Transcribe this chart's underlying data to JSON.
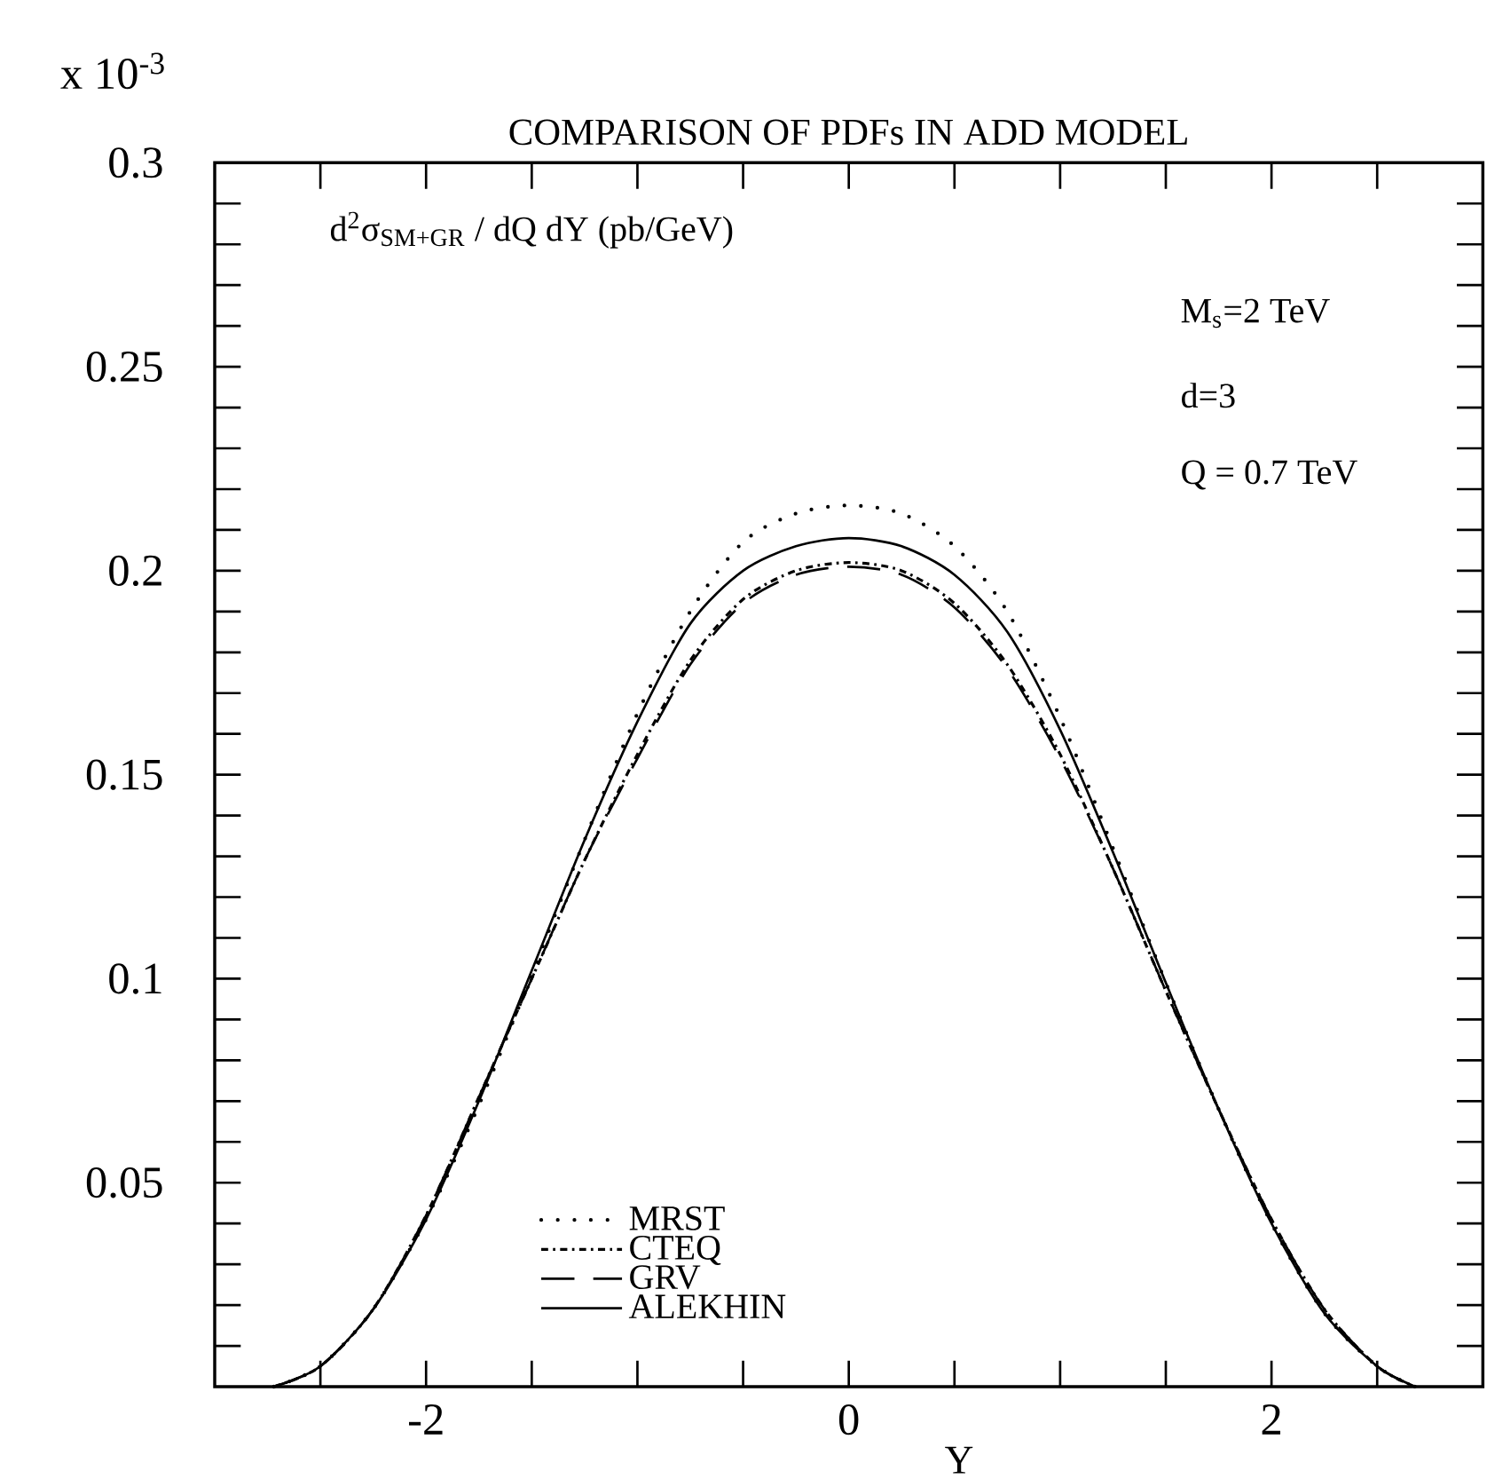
{
  "chart_data": {
    "type": "line",
    "title": "COMPARISON OF PDFs IN ADD MODEL",
    "xlabel": "Y",
    "annotations": [
      "x 10$^{-3}$",
      "d$^{2}$σ$_{SM+GR}$ / dQ dY (pb/GeV)",
      "M$_{s}$=2 TeV",
      "d=3",
      "Q = 0.7 TeV"
    ],
    "x": [
      -2.72,
      -2.5,
      -2.25,
      -2,
      -1.75,
      -1.5,
      -1.25,
      -1,
      -0.75,
      -0.5,
      -0.25,
      0,
      0.25,
      0.5,
      0.75,
      1,
      1.25,
      1.5,
      1.75,
      2,
      2.25,
      2.5,
      2.68
    ],
    "series": [
      {
        "name": "MRST",
        "color": "#000000",
        "line_style": "dotted",
        "values": [
          0,
          0.005,
          0.019,
          0.041,
          0.069,
          0.101,
          0.134,
          0.165,
          0.19,
          0.207,
          0.214,
          0.216,
          0.214,
          0.206,
          0.19,
          0.164,
          0.132,
          0.099,
          0.068,
          0.04,
          0.018,
          0.005,
          0
        ]
      },
      {
        "name": "CTEQ",
        "color": "#000000",
        "line_style": "dashdot",
        "values": [
          0,
          0.005,
          0.019,
          0.042,
          0.071,
          0.1,
          0.129,
          0.155,
          0.178,
          0.193,
          0.2,
          0.202,
          0.2,
          0.192,
          0.177,
          0.155,
          0.127,
          0.097,
          0.068,
          0.041,
          0.019,
          0.005,
          0
        ]
      },
      {
        "name": "GRV",
        "color": "#000000",
        "line_style": "dashed",
        "values": [
          0,
          0.005,
          0.019,
          0.042,
          0.071,
          0.1,
          0.129,
          0.154,
          0.177,
          0.192,
          0.199,
          0.201,
          0.199,
          0.191,
          0.176,
          0.154,
          0.127,
          0.097,
          0.068,
          0.041,
          0.019,
          0.005,
          0
        ]
      },
      {
        "name": "ALEKHIN",
        "color": "#000000",
        "line_style": "solid",
        "values": [
          0,
          0.005,
          0.019,
          0.041,
          0.07,
          0.102,
          0.134,
          0.163,
          0.187,
          0.2,
          0.206,
          0.208,
          0.206,
          0.199,
          0.185,
          0.161,
          0.131,
          0.099,
          0.068,
          0.04,
          0.018,
          0.005,
          0
        ]
      }
    ],
    "xlim": [
      -3,
      3
    ],
    "ylim": [
      0,
      0.3
    ],
    "xticks": [
      {
        "value": -2.5,
        "label": null
      },
      {
        "value": -2,
        "label": "-2"
      },
      {
        "value": -1.5,
        "label": null
      },
      {
        "value": -1,
        "label": null
      },
      {
        "value": -0.5,
        "label": null
      },
      {
        "value": 0,
        "label": "0"
      },
      {
        "value": 0.5,
        "label": null
      },
      {
        "value": 1,
        "label": null
      },
      {
        "value": 1.5,
        "label": null
      },
      {
        "value": 2,
        "label": "2"
      },
      {
        "value": 2.5,
        "label": null
      }
    ],
    "yticks": [
      {
        "value": 0.01,
        "label": null
      },
      {
        "value": 0.02,
        "label": null
      },
      {
        "value": 0.03,
        "label": null
      },
      {
        "value": 0.04,
        "label": null
      },
      0.05,
      {
        "value": 0.06,
        "label": null
      },
      {
        "value": 0.07,
        "label": null
      },
      {
        "value": 0.08,
        "label": null
      },
      {
        "value": 0.09,
        "label": null
      },
      0.1,
      {
        "value": 0.11,
        "label": null
      },
      {
        "value": 0.12,
        "label": null
      },
      {
        "value": 0.13,
        "label": null
      },
      {
        "value": 0.14,
        "label": null
      },
      0.15,
      {
        "value": 0.16,
        "label": null
      },
      {
        "value": 0.17,
        "label": null
      },
      {
        "value": 0.18,
        "label": null
      },
      {
        "value": 0.19,
        "label": null
      },
      0.2,
      {
        "value": 0.21,
        "label": null
      },
      {
        "value": 0.22,
        "label": null
      },
      {
        "value": 0.23,
        "label": null
      },
      {
        "value": 0.24,
        "label": null
      },
      0.25,
      {
        "value": 0.26,
        "label": null
      },
      {
        "value": 0.27,
        "label": null
      },
      {
        "value": 0.28,
        "label": null
      },
      {
        "value": 0.29,
        "label": null
      },
      0.3
    ],
    "legend": "bottom",
    "grid": false,
    "marker": "none"
  }
}
